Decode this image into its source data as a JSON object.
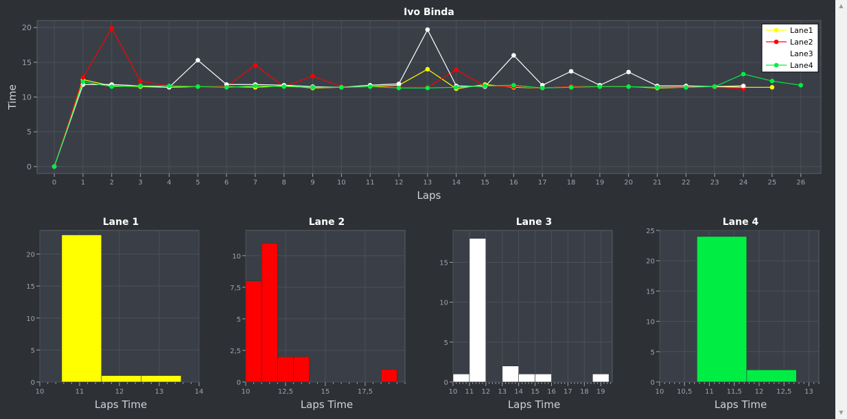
{
  "chart_data": [
    {
      "type": "line",
      "title": "Ivo Binda",
      "xlabel": "Laps",
      "ylabel": "Time",
      "xlim": [
        -0.6,
        26.7
      ],
      "ylim": [
        -1,
        21
      ],
      "xticks": [
        0,
        1,
        2,
        3,
        4,
        5,
        6,
        7,
        8,
        9,
        10,
        11,
        12,
        13,
        14,
        15,
        16,
        17,
        18,
        19,
        20,
        21,
        22,
        23,
        24,
        25,
        26
      ],
      "yticks": [
        0,
        5,
        10,
        15,
        20
      ],
      "grid": true,
      "legend": "top-right",
      "x": [
        0,
        1,
        2,
        3,
        4,
        5,
        6,
        7,
        8,
        9,
        10,
        11,
        12,
        13,
        14,
        15,
        16,
        17,
        18,
        19,
        20,
        21,
        22,
        23,
        24,
        25,
        26
      ],
      "series": [
        {
          "name": "Lane1",
          "color": "#ffff00",
          "values": [
            0,
            12.5,
            11.6,
            11.5,
            11.4,
            11.5,
            11.5,
            11.4,
            11.6,
            11.3,
            11.4,
            11.5,
            11.7,
            14.0,
            11.2,
            11.8,
            11.4,
            11.3,
            11.5,
            11.5,
            11.5,
            11.3,
            11.4,
            11.5,
            11.4,
            11.4,
            null
          ]
        },
        {
          "name": "Lane2",
          "color": "#ff0000",
          "values": [
            0,
            12.8,
            19.9,
            12.3,
            11.6,
            11.5,
            11.5,
            14.6,
            11.5,
            13.0,
            11.5,
            11.5,
            11.4,
            11.4,
            13.9,
            11.6,
            11.5,
            11.3,
            11.5,
            11.5,
            11.5,
            11.4,
            11.5,
            11.4,
            11.2,
            null,
            null
          ]
        },
        {
          "name": "Lane3",
          "color": "#ffffff",
          "values": [
            0,
            11.8,
            11.8,
            11.6,
            11.4,
            15.3,
            11.8,
            11.8,
            11.7,
            11.5,
            11.4,
            11.7,
            11.9,
            19.7,
            11.6,
            11.5,
            16.0,
            11.7,
            13.7,
            11.7,
            13.6,
            11.6,
            11.6,
            11.5,
            11.6,
            null,
            null
          ]
        },
        {
          "name": "Lane4",
          "color": "#00ee44",
          "values": [
            0,
            12.2,
            11.5,
            11.6,
            11.6,
            11.5,
            11.4,
            11.6,
            11.5,
            11.4,
            11.4,
            11.5,
            11.3,
            11.3,
            11.4,
            11.6,
            11.7,
            11.3,
            11.4,
            11.5,
            11.5,
            11.4,
            11.4,
            11.5,
            13.3,
            12.3,
            11.7
          ]
        }
      ]
    },
    {
      "type": "bar",
      "title": "Lane 1",
      "xlabel": "Laps Time",
      "color": "#ffff00",
      "xlim": [
        10,
        14
      ],
      "ylim": [
        0,
        23.7
      ],
      "xticks": [
        10,
        11,
        12,
        13,
        14
      ],
      "xticklabels": [
        "10",
        "11",
        "12",
        "13",
        "14"
      ],
      "yticks": [
        0,
        5,
        10,
        15,
        20
      ],
      "yticklabels": [
        "0",
        "5",
        "10",
        "15",
        "20"
      ],
      "bins": [
        {
          "from": 10.55,
          "to": 11.55,
          "value": 23
        },
        {
          "from": 11.55,
          "to": 12.55,
          "value": 1
        },
        {
          "from": 12.55,
          "to": 13.55,
          "value": 1
        }
      ]
    },
    {
      "type": "bar",
      "title": "Lane 2",
      "xlabel": "Laps Time",
      "color": "#ff0000",
      "xlim": [
        10,
        20
      ],
      "ylim": [
        0,
        12
      ],
      "xticks": [
        10,
        12.5,
        15,
        17.5
      ],
      "xticklabels": [
        "10",
        "12,5",
        "15",
        "17,5"
      ],
      "yticks": [
        0,
        2.5,
        5,
        7.5,
        10
      ],
      "yticklabels": [
        "0",
        "2,5",
        "5",
        "7,5",
        "10"
      ],
      "bins": [
        {
          "from": 10,
          "to": 11,
          "value": 8
        },
        {
          "from": 11,
          "to": 12,
          "value": 11
        },
        {
          "from": 12,
          "to": 13,
          "value": 2
        },
        {
          "from": 13,
          "to": 14,
          "value": 2
        },
        {
          "from": 18.5,
          "to": 19.5,
          "value": 1
        }
      ]
    },
    {
      "type": "bar",
      "title": "Lane 3",
      "xlabel": "Laps Time",
      "color": "#ffffff",
      "xlim": [
        10,
        19.7
      ],
      "ylim": [
        0,
        19
      ],
      "xticks": [
        10,
        11,
        12,
        13,
        14,
        15,
        16,
        17,
        18,
        19
      ],
      "xticklabels": [
        "10",
        "11",
        "12",
        "13",
        "14",
        "15",
        "16",
        "17",
        "18",
        "19"
      ],
      "yticks": [
        0,
        5,
        10,
        15
      ],
      "yticklabels": [
        "0",
        "5",
        "10",
        "15"
      ],
      "bins": [
        {
          "from": 10,
          "to": 11,
          "value": 1
        },
        {
          "from": 11,
          "to": 12,
          "value": 18
        },
        {
          "from": 13,
          "to": 14,
          "value": 2
        },
        {
          "from": 14,
          "to": 15,
          "value": 1
        },
        {
          "from": 15,
          "to": 16,
          "value": 1
        },
        {
          "from": 18.5,
          "to": 19.5,
          "value": 1
        }
      ]
    },
    {
      "type": "bar",
      "title": "Lane 4",
      "xlabel": "Laps Time",
      "color": "#00ee44",
      "xlim": [
        10,
        13.2
      ],
      "ylim": [
        0,
        25
      ],
      "xticks": [
        10,
        10.5,
        11,
        11.5,
        12,
        12.5,
        13
      ],
      "xticklabels": [
        "10",
        "10,5",
        "11",
        "11,5",
        "12",
        "12,5",
        "13"
      ],
      "yticks": [
        0,
        5,
        10,
        15,
        20,
        25
      ],
      "yticklabels": [
        "0",
        "5",
        "10",
        "15",
        "20",
        "25"
      ],
      "bins": [
        {
          "from": 10.75,
          "to": 11.75,
          "value": 24
        },
        {
          "from": 11.75,
          "to": 12.75,
          "value": 2
        }
      ]
    }
  ],
  "colors": {
    "background": "#2d3136",
    "plot": "#3a3f47",
    "grid": "#4a5058",
    "axis": "#a0a4aa",
    "text": "#ffffff"
  },
  "scrollbar": {
    "up_icon": "▲",
    "down_icon": "▼"
  }
}
